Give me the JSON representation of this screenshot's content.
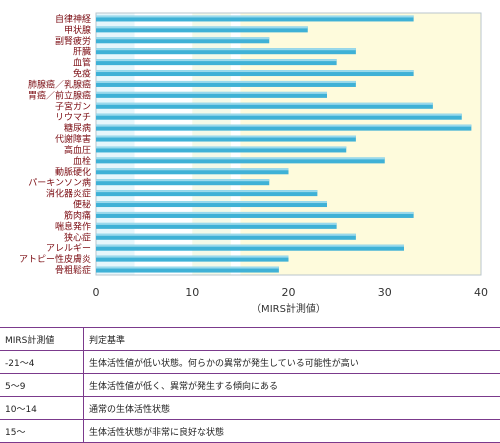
{
  "chart_data": {
    "type": "bar",
    "orientation": "horizontal",
    "xlabel": "（MIRS計測値）",
    "xlim": [
      0,
      40
    ],
    "xticks": [
      0,
      10,
      20,
      30,
      40
    ],
    "grid": false,
    "categories": [
      "自律神経",
      "甲状腺",
      "副腎疲労",
      "肝臓",
      "血管",
      "免疫",
      "肺腺癌／乳腺癌",
      "胃癌／前立腺癌",
      "子宮ガン",
      "リウマチ",
      "糖尿病",
      "代謝障害",
      "高血圧",
      "血栓",
      "動脈硬化",
      "パーキンソン病",
      "消化器炎症",
      "便秘",
      "筋肉痛",
      "喘息発作",
      "狭心症",
      "アレルギー",
      "アトピー性皮膚炎",
      "骨粗鬆症"
    ],
    "values": [
      33,
      22,
      18,
      27,
      25,
      33,
      27,
      24,
      35,
      38,
      39,
      27,
      26,
      30,
      20,
      18,
      23,
      24,
      33,
      25,
      27,
      32,
      20,
      19
    ],
    "bands": [
      {
        "range": [
          -21,
          4
        ],
        "color": "#e6f6fb"
      },
      {
        "range": [
          5,
          9
        ],
        "color": "#ffffff"
      },
      {
        "range": [
          10,
          14
        ],
        "color": "#f3f9e8"
      },
      {
        "range": [
          15,
          40
        ],
        "color": "#fefbdc"
      }
    ],
    "bar_color": "#3fb1d6"
  },
  "criteria_table": {
    "headers": [
      "MIRS計測値",
      "判定基準"
    ],
    "rows": [
      [
        "-21～4",
        "生体活性値が低い状態。何らかの異常が発生している可能性が高い"
      ],
      [
        "5～9",
        "生体活性値が低く、異常が発生する傾向にある"
      ],
      [
        "10～14",
        "通常の生体活性状態"
      ],
      [
        "15～",
        "生体活性状態が非常に良好な状態"
      ]
    ]
  },
  "colors": {
    "table_border": "#7b3a8c",
    "category_text": "#7a0a10"
  }
}
